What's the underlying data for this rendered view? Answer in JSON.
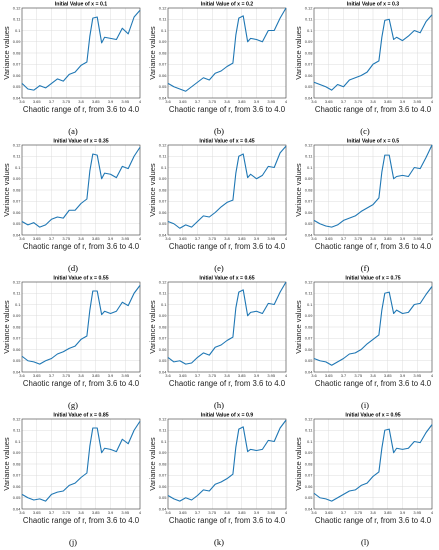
{
  "chart_data": [
    {
      "type": "line",
      "letter": "(a)",
      "title": "Initial Value of x = 0.1",
      "xlabel": "Chaotic range of r, from 3.6 to 4.0",
      "ylabel": "Variance values",
      "xlim": [
        3.6,
        4.0
      ],
      "ylim": [
        0.04,
        0.12
      ],
      "xticks": [
        "3.6",
        "3.65",
        "3.7",
        "3.75",
        "3.8",
        "3.85",
        "3.9",
        "3.95",
        "4"
      ],
      "yticks": [
        "0.04",
        "0.05",
        "0.06",
        "0.07",
        "0.08",
        "0.09",
        "0.1",
        "0.11",
        "0.12"
      ],
      "x": [
        3.6,
        3.62,
        3.64,
        3.66,
        3.68,
        3.7,
        3.72,
        3.74,
        3.76,
        3.78,
        3.8,
        3.82,
        3.83,
        3.84,
        3.855,
        3.87,
        3.88,
        3.9,
        3.92,
        3.94,
        3.96,
        3.98,
        4.0
      ],
      "y": [
        0.053,
        0.048,
        0.047,
        0.051,
        0.049,
        0.053,
        0.057,
        0.055,
        0.061,
        0.063,
        0.069,
        0.072,
        0.095,
        0.111,
        0.112,
        0.089,
        0.094,
        0.093,
        0.092,
        0.102,
        0.097,
        0.112,
        0.118
      ]
    },
    {
      "type": "line",
      "letter": "(b)",
      "title": "Initial Value of x = 0.2",
      "xlabel": "Chaotic range of r, from 3.6 to 4.0",
      "ylabel": "Variance values",
      "xlim": [
        3.6,
        4.0
      ],
      "ylim": [
        0.04,
        0.12
      ],
      "xticks": [
        "3.6",
        "3.65",
        "3.7",
        "3.75",
        "3.8",
        "3.85",
        "3.9",
        "3.95",
        "4"
      ],
      "yticks": [
        "0.04",
        "0.05",
        "0.06",
        "0.07",
        "0.08",
        "0.09",
        "0.1",
        "0.11",
        "0.12"
      ],
      "x": [
        3.6,
        3.62,
        3.64,
        3.66,
        3.68,
        3.7,
        3.72,
        3.74,
        3.76,
        3.78,
        3.8,
        3.82,
        3.83,
        3.84,
        3.855,
        3.87,
        3.88,
        3.9,
        3.92,
        3.94,
        3.96,
        3.98,
        4.0
      ],
      "y": [
        0.053,
        0.05,
        0.048,
        0.046,
        0.05,
        0.054,
        0.058,
        0.056,
        0.062,
        0.064,
        0.068,
        0.071,
        0.096,
        0.111,
        0.113,
        0.09,
        0.093,
        0.092,
        0.09,
        0.1,
        0.1,
        0.111,
        0.12
      ]
    },
    {
      "type": "line",
      "letter": "(c)",
      "title": "Initial Value of x = 0.3",
      "xlabel": "Chaotic range of r, from 3.6 to 4.0",
      "ylabel": "Variance values",
      "xlim": [
        3.6,
        4.0
      ],
      "ylim": [
        0.04,
        0.12
      ],
      "xticks": [
        "3.6",
        "3.65",
        "3.7",
        "3.75",
        "3.8",
        "3.85",
        "3.9",
        "3.95",
        "4"
      ],
      "yticks": [
        "0.04",
        "0.05",
        "0.06",
        "0.07",
        "0.08",
        "0.09",
        "0.1",
        "0.11",
        "0.12"
      ],
      "x": [
        3.6,
        3.62,
        3.64,
        3.66,
        3.68,
        3.7,
        3.72,
        3.74,
        3.76,
        3.78,
        3.8,
        3.82,
        3.83,
        3.84,
        3.855,
        3.87,
        3.88,
        3.9,
        3.92,
        3.94,
        3.96,
        3.98,
        4.0
      ],
      "y": [
        0.054,
        0.052,
        0.05,
        0.047,
        0.052,
        0.05,
        0.056,
        0.058,
        0.06,
        0.063,
        0.07,
        0.073,
        0.094,
        0.109,
        0.11,
        0.092,
        0.094,
        0.091,
        0.095,
        0.1,
        0.098,
        0.108,
        0.114
      ]
    },
    {
      "type": "line",
      "letter": "(d)",
      "title": "Initial Value of x = 0.35",
      "xlabel": "Chaotic range of r, from 3.6 to 4.0",
      "ylabel": "Variance values",
      "xlim": [
        3.6,
        4.0
      ],
      "ylim": [
        0.04,
        0.12
      ],
      "xticks": [
        "3.6",
        "3.65",
        "3.7",
        "3.75",
        "3.8",
        "3.85",
        "3.9",
        "3.95",
        "4"
      ],
      "yticks": [
        "0.04",
        "0.05",
        "0.06",
        "0.07",
        "0.08",
        "0.09",
        "0.1",
        "0.11",
        "0.12"
      ],
      "x": [
        3.6,
        3.62,
        3.64,
        3.66,
        3.68,
        3.7,
        3.72,
        3.74,
        3.76,
        3.78,
        3.8,
        3.82,
        3.83,
        3.84,
        3.855,
        3.87,
        3.88,
        3.9,
        3.92,
        3.94,
        3.96,
        3.98,
        4.0
      ],
      "y": [
        0.052,
        0.049,
        0.051,
        0.047,
        0.049,
        0.054,
        0.056,
        0.055,
        0.062,
        0.062,
        0.068,
        0.072,
        0.097,
        0.112,
        0.111,
        0.09,
        0.095,
        0.094,
        0.091,
        0.101,
        0.099,
        0.11,
        0.118
      ]
    },
    {
      "type": "line",
      "letter": "(e)",
      "title": "Initial Value of x = 0.45",
      "xlabel": "Chaotic range of r, from 3.6 to 4.0",
      "ylabel": "Variance values",
      "xlim": [
        3.6,
        4.0
      ],
      "ylim": [
        0.04,
        0.12
      ],
      "xticks": [
        "3.6",
        "3.65",
        "3.7",
        "3.75",
        "3.8",
        "3.85",
        "3.9",
        "3.95",
        "4"
      ],
      "yticks": [
        "0.04",
        "0.05",
        "0.06",
        "0.07",
        "0.08",
        "0.09",
        "0.1",
        "0.11",
        "0.12"
      ],
      "x": [
        3.6,
        3.62,
        3.64,
        3.66,
        3.68,
        3.7,
        3.72,
        3.74,
        3.76,
        3.78,
        3.8,
        3.82,
        3.83,
        3.84,
        3.855,
        3.87,
        3.88,
        3.9,
        3.92,
        3.94,
        3.96,
        3.98,
        4.0
      ],
      "y": [
        0.052,
        0.05,
        0.046,
        0.049,
        0.047,
        0.052,
        0.057,
        0.056,
        0.06,
        0.065,
        0.069,
        0.071,
        0.095,
        0.11,
        0.112,
        0.091,
        0.094,
        0.09,
        0.093,
        0.101,
        0.1,
        0.113,
        0.119
      ]
    },
    {
      "type": "line",
      "letter": "(f)",
      "title": "Initial Value of x = 0.5",
      "xlabel": "Chaotic range of r, from 3.6 to 4.0",
      "ylabel": "Variance values",
      "xlim": [
        3.6,
        4.0
      ],
      "ylim": [
        0.04,
        0.12
      ],
      "xticks": [
        "3.6",
        "3.65",
        "3.7",
        "3.75",
        "3.8",
        "3.85",
        "3.9",
        "3.95",
        "4"
      ],
      "yticks": [
        "0.04",
        "0.05",
        "0.06",
        "0.07",
        "0.08",
        "0.09",
        "0.1",
        "0.11",
        "0.12"
      ],
      "x": [
        3.6,
        3.62,
        3.64,
        3.66,
        3.68,
        3.7,
        3.72,
        3.74,
        3.76,
        3.78,
        3.8,
        3.82,
        3.83,
        3.84,
        3.855,
        3.87,
        3.88,
        3.9,
        3.92,
        3.94,
        3.96,
        3.98,
        4.0
      ],
      "y": [
        0.053,
        0.05,
        0.048,
        0.047,
        0.049,
        0.053,
        0.055,
        0.057,
        0.061,
        0.064,
        0.067,
        0.073,
        0.096,
        0.111,
        0.111,
        0.09,
        0.092,
        0.093,
        0.092,
        0.1,
        0.099,
        0.109,
        0.12
      ]
    },
    {
      "type": "line",
      "letter": "(g)",
      "title": "Initial Value of x = 0.55",
      "xlabel": "Chaotic range of r, from 3.6 to 4.0",
      "ylabel": "Variance values",
      "xlim": [
        3.6,
        4.0
      ],
      "ylim": [
        0.04,
        0.12
      ],
      "xticks": [
        "3.6",
        "3.65",
        "3.7",
        "3.75",
        "3.8",
        "3.85",
        "3.9",
        "3.95",
        "4"
      ],
      "yticks": [
        "0.04",
        "0.05",
        "0.06",
        "0.07",
        "0.08",
        "0.09",
        "0.1",
        "0.11",
        "0.12"
      ],
      "x": [
        3.6,
        3.62,
        3.64,
        3.66,
        3.68,
        3.7,
        3.72,
        3.74,
        3.76,
        3.78,
        3.8,
        3.82,
        3.83,
        3.84,
        3.855,
        3.87,
        3.88,
        3.9,
        3.92,
        3.94,
        3.96,
        3.98,
        4.0
      ],
      "y": [
        0.054,
        0.05,
        0.049,
        0.047,
        0.05,
        0.052,
        0.056,
        0.058,
        0.061,
        0.063,
        0.069,
        0.072,
        0.095,
        0.112,
        0.112,
        0.091,
        0.094,
        0.092,
        0.094,
        0.102,
        0.099,
        0.11,
        0.117
      ]
    },
    {
      "type": "line",
      "letter": "(h)",
      "title": "Initial Value of x = 0.65",
      "xlabel": "Chaotic range of r, from 3.6 to 4.0",
      "ylabel": "Variance values",
      "xlim": [
        3.6,
        4.0
      ],
      "ylim": [
        0.04,
        0.12
      ],
      "xticks": [
        "3.6",
        "3.65",
        "3.7",
        "3.75",
        "3.8",
        "3.85",
        "3.9",
        "3.95",
        "4"
      ],
      "yticks": [
        "0.04",
        "0.05",
        "0.06",
        "0.07",
        "0.08",
        "0.09",
        "0.1",
        "0.11",
        "0.12"
      ],
      "x": [
        3.6,
        3.62,
        3.64,
        3.66,
        3.68,
        3.7,
        3.72,
        3.74,
        3.76,
        3.78,
        3.8,
        3.82,
        3.83,
        3.84,
        3.855,
        3.87,
        3.88,
        3.9,
        3.92,
        3.94,
        3.96,
        3.98,
        4.0
      ],
      "y": [
        0.053,
        0.049,
        0.05,
        0.047,
        0.048,
        0.053,
        0.057,
        0.055,
        0.062,
        0.064,
        0.068,
        0.071,
        0.097,
        0.111,
        0.113,
        0.09,
        0.093,
        0.094,
        0.092,
        0.101,
        0.1,
        0.111,
        0.12
      ]
    },
    {
      "type": "line",
      "letter": "(i)",
      "title": "Initial Value of x = 0.75",
      "xlabel": "Chaotic range of r, from 3.6 to 4.0",
      "ylabel": "Variance values",
      "xlim": [
        3.6,
        4.0
      ],
      "ylim": [
        0.04,
        0.12
      ],
      "xticks": [
        "3.6",
        "3.65",
        "3.7",
        "3.75",
        "3.8",
        "3.85",
        "3.9",
        "3.95",
        "4"
      ],
      "yticks": [
        "0.04",
        "0.05",
        "0.06",
        "0.07",
        "0.08",
        "0.09",
        "0.1",
        "0.11",
        "0.12"
      ],
      "x": [
        3.6,
        3.62,
        3.64,
        3.66,
        3.68,
        3.7,
        3.72,
        3.74,
        3.76,
        3.78,
        3.8,
        3.82,
        3.83,
        3.84,
        3.855,
        3.87,
        3.88,
        3.9,
        3.92,
        3.94,
        3.96,
        3.98,
        4.0
      ],
      "y": [
        0.052,
        0.05,
        0.049,
        0.046,
        0.049,
        0.052,
        0.056,
        0.057,
        0.06,
        0.065,
        0.069,
        0.073,
        0.095,
        0.11,
        0.111,
        0.092,
        0.095,
        0.092,
        0.093,
        0.1,
        0.101,
        0.109,
        0.116
      ]
    },
    {
      "type": "line",
      "letter": "(j)",
      "title": "Initial Value of x = 0.85",
      "xlabel": "Chaotic range of r, from 3.6 to 4.0",
      "ylabel": "Variance values",
      "xlim": [
        3.6,
        4.0
      ],
      "ylim": [
        0.04,
        0.12
      ],
      "xticks": [
        "3.6",
        "3.65",
        "3.7",
        "3.75",
        "3.8",
        "3.85",
        "3.9",
        "3.95",
        "4"
      ],
      "yticks": [
        "0.04",
        "0.05",
        "0.06",
        "0.07",
        "0.08",
        "0.09",
        "0.1",
        "0.11",
        "0.12"
      ],
      "x": [
        3.6,
        3.62,
        3.64,
        3.66,
        3.68,
        3.7,
        3.72,
        3.74,
        3.76,
        3.78,
        3.8,
        3.82,
        3.83,
        3.84,
        3.855,
        3.87,
        3.88,
        3.9,
        3.92,
        3.94,
        3.96,
        3.98,
        4.0
      ],
      "y": [
        0.053,
        0.05,
        0.048,
        0.049,
        0.047,
        0.053,
        0.055,
        0.056,
        0.061,
        0.063,
        0.068,
        0.072,
        0.096,
        0.112,
        0.112,
        0.09,
        0.094,
        0.093,
        0.091,
        0.102,
        0.098,
        0.11,
        0.118
      ]
    },
    {
      "type": "line",
      "letter": "(k)",
      "title": "Initial Value of x = 0.9",
      "xlabel": "Chaotic range of r, from 3.6 to 4.0",
      "ylabel": "Variance values",
      "xlim": [
        3.6,
        4.0
      ],
      "ylim": [
        0.04,
        0.12
      ],
      "xticks": [
        "3.6",
        "3.65",
        "3.7",
        "3.75",
        "3.8",
        "3.85",
        "3.9",
        "3.95",
        "4"
      ],
      "yticks": [
        "0.04",
        "0.05",
        "0.06",
        "0.07",
        "0.08",
        "0.09",
        "0.1",
        "0.11",
        "0.12"
      ],
      "x": [
        3.6,
        3.62,
        3.64,
        3.66,
        3.68,
        3.7,
        3.72,
        3.74,
        3.76,
        3.78,
        3.8,
        3.82,
        3.83,
        3.84,
        3.855,
        3.87,
        3.88,
        3.9,
        3.92,
        3.94,
        3.96,
        3.98,
        4.0
      ],
      "y": [
        0.052,
        0.049,
        0.047,
        0.05,
        0.048,
        0.052,
        0.057,
        0.056,
        0.062,
        0.064,
        0.067,
        0.071,
        0.095,
        0.111,
        0.113,
        0.091,
        0.093,
        0.092,
        0.093,
        0.101,
        0.1,
        0.112,
        0.119
      ]
    },
    {
      "type": "line",
      "letter": "(l)",
      "title": "Initial Value of x = 0.95",
      "xlabel": "Chaotic range of r, from 3.6 to 4.0",
      "ylabel": "Variance values",
      "xlim": [
        3.6,
        4.0
      ],
      "ylim": [
        0.04,
        0.12
      ],
      "xticks": [
        "3.6",
        "3.65",
        "3.7",
        "3.75",
        "3.8",
        "3.85",
        "3.9",
        "3.95",
        "4"
      ],
      "yticks": [
        "0.04",
        "0.05",
        "0.06",
        "0.07",
        "0.08",
        "0.09",
        "0.1",
        "0.11",
        "0.12"
      ],
      "x": [
        3.6,
        3.62,
        3.64,
        3.66,
        3.68,
        3.7,
        3.72,
        3.74,
        3.76,
        3.78,
        3.8,
        3.82,
        3.83,
        3.84,
        3.855,
        3.87,
        3.88,
        3.9,
        3.92,
        3.94,
        3.96,
        3.98,
        4.0
      ],
      "y": [
        0.054,
        0.05,
        0.049,
        0.047,
        0.05,
        0.053,
        0.056,
        0.057,
        0.061,
        0.063,
        0.069,
        0.073,
        0.094,
        0.11,
        0.111,
        0.09,
        0.094,
        0.093,
        0.094,
        0.1,
        0.099,
        0.108,
        0.115
      ]
    }
  ],
  "style": {
    "line_color": "#1f77b4",
    "grid_color": "#dcdcdc",
    "axis_color": "#444444"
  }
}
